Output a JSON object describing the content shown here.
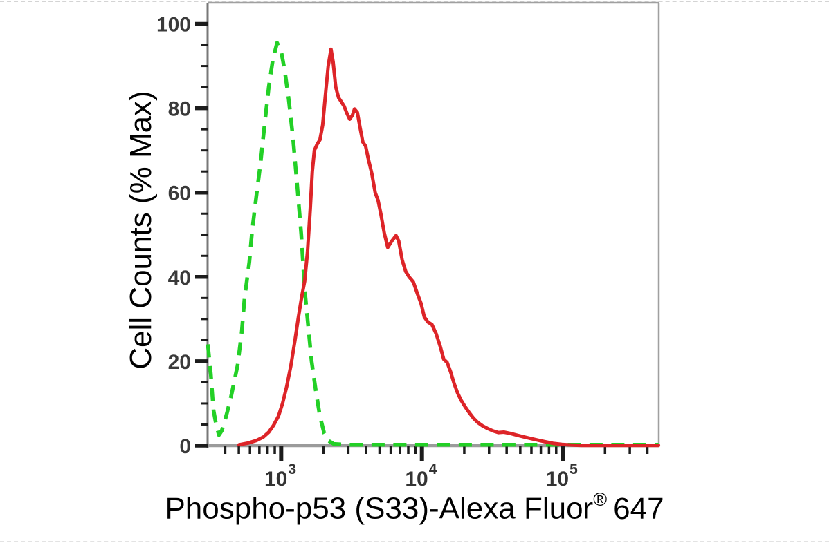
{
  "figure": {
    "y_axis_title": "Cell Counts (% Max)",
    "x_axis_title": {
      "main": "Phospho-p53 (S33)-Alexa Fluor",
      "superscript": "®",
      "suffix": "647"
    },
    "colors": {
      "red_series": "#dd2428",
      "green_series": "#23d026",
      "axis_line": "#9b9b9b",
      "y_axis_line": "#787878",
      "tick": "#1c1c1c",
      "tick_label": "#3a3a3a",
      "frame": "#a0a0a0"
    }
  },
  "chart_data": {
    "type": "line",
    "subtype": "flow-cytometry-histogram-overlay",
    "title": "",
    "xlabel": "Phospho-p53 (S33)-Alexa Fluor® 647",
    "ylabel": "Cell Counts (% Max)",
    "x_scale": "log10",
    "xlim": [
      300,
      482000
    ],
    "ylim": [
      0,
      105
    ],
    "grid": false,
    "legend": "none",
    "x_major_ticks": [
      {
        "value": 1000,
        "label_base": "10",
        "label_exp": "3"
      },
      {
        "value": 10000,
        "label_base": "10",
        "label_exp": "4"
      },
      {
        "value": 100000,
        "label_base": "10",
        "label_exp": "5"
      }
    ],
    "x_minor_tick_multiples": [
      2,
      3,
      4,
      5,
      6,
      7,
      8,
      9
    ],
    "y_major_ticks": [
      0,
      20,
      40,
      60,
      80,
      100
    ],
    "y_minor_tick_step": 5,
    "series": [
      {
        "id": "green-dashed",
        "line_style": "dashed",
        "color": "#23d026",
        "points": [
          [
            301,
            24
          ],
          [
            316,
            17
          ],
          [
            330,
            8.5
          ],
          [
            345,
            5
          ],
          [
            361,
            2.5
          ],
          [
            378,
            3.5
          ],
          [
            395,
            5.5
          ],
          [
            414,
            8
          ],
          [
            443,
            12
          ],
          [
            490,
            19
          ],
          [
            525,
            27
          ],
          [
            549,
            35
          ],
          [
            594,
            43.5
          ],
          [
            622,
            51
          ],
          [
            665,
            59
          ],
          [
            713,
            67
          ],
          [
            762,
            76
          ],
          [
            816,
            85
          ],
          [
            873,
            91.5
          ],
          [
            935,
            95.5
          ],
          [
            1000,
            93.5
          ],
          [
            1059,
            89
          ],
          [
            1132,
            82
          ],
          [
            1213,
            73
          ],
          [
            1297,
            62
          ],
          [
            1390,
            50
          ],
          [
            1469,
            37
          ],
          [
            1538,
            30
          ],
          [
            1645,
            20
          ],
          [
            1762,
            13
          ],
          [
            1884,
            7
          ],
          [
            2018,
            3
          ],
          [
            2158,
            1.2
          ],
          [
            2361,
            0.4
          ],
          [
            2900,
            0.2
          ],
          [
            480000,
            0.2
          ]
        ]
      },
      {
        "id": "red-solid",
        "line_style": "solid",
        "color": "#dd2428",
        "points": [
          [
            501,
            0.2
          ],
          [
            581,
            0.6
          ],
          [
            665,
            1.2
          ],
          [
            745,
            2
          ],
          [
            816,
            3.2
          ],
          [
            883,
            4.8
          ],
          [
            956,
            7
          ],
          [
            1023,
            10
          ],
          [
            1094,
            14
          ],
          [
            1172,
            19
          ],
          [
            1254,
            25
          ],
          [
            1327,
            30.5
          ],
          [
            1403,
            35.5
          ],
          [
            1469,
            39
          ],
          [
            1538,
            46
          ],
          [
            1608,
            56
          ],
          [
            1664,
            65
          ],
          [
            1722,
            70
          ],
          [
            1802,
            71.5
          ],
          [
            1884,
            72.5
          ],
          [
            1972,
            76
          ],
          [
            2061,
            83
          ],
          [
            2158,
            90
          ],
          [
            2259,
            94
          ],
          [
            2338,
            91
          ],
          [
            2443,
            85
          ],
          [
            2558,
            82.5
          ],
          [
            2679,
            81.5
          ],
          [
            2799,
            80.5
          ],
          [
            2931,
            78.8
          ],
          [
            3069,
            77.4
          ],
          [
            3206,
            78.3
          ],
          [
            3319,
            79.8
          ],
          [
            3475,
            79
          ],
          [
            3631,
            75.5
          ],
          [
            3802,
            72
          ],
          [
            3981,
            71
          ],
          [
            4159,
            68
          ],
          [
            4406,
            64.5
          ],
          [
            4656,
            60
          ],
          [
            4875,
            58.2
          ],
          [
            5105,
            55
          ],
          [
            5395,
            50.5
          ],
          [
            5713,
            47
          ],
          [
            6109,
            48.5
          ],
          [
            6546,
            49.8
          ],
          [
            6839,
            48.5
          ],
          [
            7244,
            44
          ],
          [
            7674,
            41.3
          ],
          [
            8110,
            40
          ],
          [
            8690,
            38.8
          ],
          [
            9290,
            36
          ],
          [
            9840,
            33.8
          ],
          [
            10400,
            30.5
          ],
          [
            11020,
            29.3
          ],
          [
            11780,
            28.7
          ],
          [
            12620,
            26.5
          ],
          [
            13490,
            23.5
          ],
          [
            14290,
            20.5
          ],
          [
            15110,
            19.7
          ],
          [
            16000,
            17.5
          ],
          [
            16940,
            14.7
          ],
          [
            17910,
            12.5
          ],
          [
            18950,
            10.8
          ],
          [
            20280,
            9.2
          ],
          [
            21720,
            7.8
          ],
          [
            23230,
            6.5
          ],
          [
            24890,
            5.5
          ],
          [
            26920,
            4.7
          ],
          [
            29110,
            4.1
          ],
          [
            31920,
            3.5
          ],
          [
            34930,
            3.1
          ],
          [
            38190,
            3.2
          ],
          [
            42360,
            2.9
          ],
          [
            46880,
            2.5
          ],
          [
            52480,
            2.1
          ],
          [
            58750,
            1.7
          ],
          [
            66530,
            1.3
          ],
          [
            75340,
            0.9
          ],
          [
            86300,
            0.5
          ],
          [
            98860,
            0.3
          ],
          [
            114600,
            0.15
          ],
          [
            135800,
            0.05
          ],
          [
            480000,
            0.05
          ]
        ]
      }
    ]
  }
}
